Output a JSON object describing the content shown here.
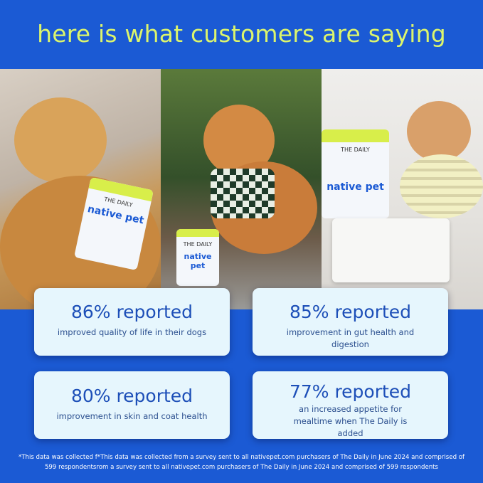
{
  "title": "here is what customers are saying",
  "product": {
    "name": "THE DAILY",
    "brand": "native pet"
  },
  "stats": [
    {
      "headline": "86% reported",
      "percent": 86,
      "detail": "improved quality of life in their dogs"
    },
    {
      "headline": "85% reported",
      "percent": 85,
      "detail": "improvement in gut health and digestion"
    },
    {
      "headline": "80% reported",
      "percent": 80,
      "detail": "improvement in skin and coat health"
    },
    {
      "headline": "77% reported",
      "percent": 77,
      "detail": "an increased appetite for mealtime when The Daily is added"
    }
  ],
  "footnote": "*This data was collected f*This data was collected from a survey sent to all nativepet.com purchasers of The Daily in June 2024 and comprised of 599 respondentsrom a survey sent to all nativepet.com purchasers of The Daily in June 2024 and comprised of 599 respondents",
  "colors": {
    "background": "#1b5ad4",
    "title": "#dcf56c",
    "card": "#e6f6fd",
    "card_text": "#1d4fb8"
  }
}
